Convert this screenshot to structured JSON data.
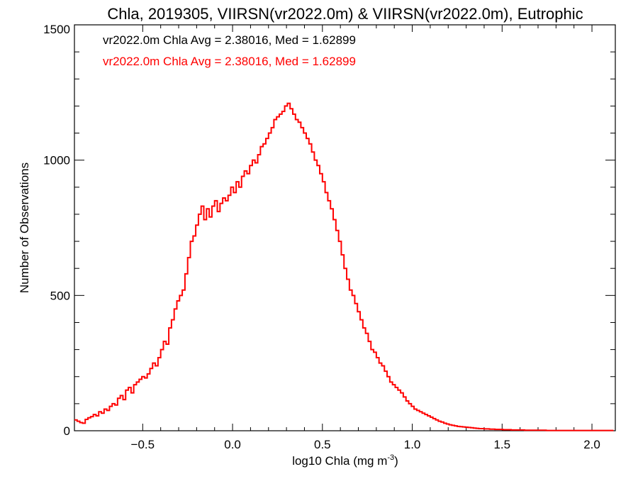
{
  "chart_data": {
    "type": "step-histogram",
    "title": "Chla, 2019305, VIIRSN(vr2022.0m) & VIIRSN(vr2022.0m), Eutrophic",
    "xlabel": "log10 Chla (mg m",
    "xlabel_sup": "-3",
    "xlabel_end": ")",
    "ylabel": "Number of Observations",
    "xlim": [
      -0.88,
      2.13
    ],
    "ylim": [
      0,
      1500
    ],
    "xticks": [
      -0.5,
      0.0,
      0.5,
      1.0,
      1.5,
      2.0
    ],
    "xtick_labels": [
      "−0.5",
      "0.0",
      "0.5",
      "1.0",
      "1.5",
      "2.0"
    ],
    "yticks": [
      0,
      500,
      1000,
      1500
    ],
    "ytick_labels": [
      "0",
      "500",
      "1000",
      "1500"
    ],
    "grid": false,
    "annotations": [
      {
        "text": "vr2022.0m Chla Avg = 2.38016, Med = 1.62899",
        "color": "#000000"
      },
      {
        "text": "vr2022.0m Chla Avg = 2.38016, Med = 1.62899",
        "color": "#ff0000"
      }
    ],
    "series": [
      {
        "color": "#ff0000",
        "bin_width": 0.015,
        "x": [
          -0.88,
          -0.865,
          -0.85,
          -0.835,
          -0.82,
          -0.805,
          -0.79,
          -0.775,
          -0.76,
          -0.745,
          -0.73,
          -0.715,
          -0.7,
          -0.685,
          -0.67,
          -0.655,
          -0.64,
          -0.625,
          -0.61,
          -0.595,
          -0.58,
          -0.565,
          -0.55,
          -0.535,
          -0.52,
          -0.505,
          -0.49,
          -0.475,
          -0.46,
          -0.445,
          -0.43,
          -0.415,
          -0.4,
          -0.385,
          -0.37,
          -0.355,
          -0.34,
          -0.325,
          -0.31,
          -0.295,
          -0.28,
          -0.265,
          -0.25,
          -0.235,
          -0.22,
          -0.205,
          -0.19,
          -0.175,
          -0.16,
          -0.145,
          -0.13,
          -0.115,
          -0.1,
          -0.085,
          -0.07,
          -0.055,
          -0.04,
          -0.025,
          -0.01,
          0.005,
          0.02,
          0.035,
          0.05,
          0.065,
          0.08,
          0.095,
          0.11,
          0.125,
          0.14,
          0.155,
          0.17,
          0.185,
          0.2,
          0.215,
          0.23,
          0.245,
          0.26,
          0.275,
          0.29,
          0.305,
          0.32,
          0.335,
          0.35,
          0.365,
          0.38,
          0.395,
          0.41,
          0.425,
          0.44,
          0.455,
          0.47,
          0.485,
          0.5,
          0.515,
          0.53,
          0.545,
          0.56,
          0.575,
          0.59,
          0.605,
          0.62,
          0.635,
          0.65,
          0.665,
          0.68,
          0.695,
          0.71,
          0.725,
          0.74,
          0.755,
          0.77,
          0.785,
          0.8,
          0.815,
          0.83,
          0.845,
          0.86,
          0.875,
          0.89,
          0.905,
          0.92,
          0.935,
          0.95,
          0.965,
          0.98,
          0.995,
          1.01,
          1.025,
          1.04,
          1.055,
          1.07,
          1.085,
          1.1,
          1.115,
          1.13,
          1.145,
          1.16,
          1.175,
          1.19,
          1.205,
          1.22,
          1.235,
          1.25,
          1.265,
          1.28,
          1.295,
          1.31,
          1.325,
          1.34,
          1.355,
          1.37,
          1.385,
          1.4,
          1.415,
          1.43,
          1.445,
          1.46,
          1.475,
          1.49,
          1.505,
          1.52,
          1.535,
          1.55,
          1.565,
          1.58,
          1.595,
          1.61,
          1.625,
          1.64,
          1.655,
          1.67,
          1.685,
          1.7,
          1.715,
          1.73,
          1.745,
          1.76,
          1.775,
          1.79,
          1.805,
          1.82,
          1.835,
          1.85,
          1.865,
          1.88,
          1.895,
          1.91,
          1.925,
          1.94,
          1.955,
          1.97,
          1.985,
          2.0,
          2.015,
          2.03,
          2.045,
          2.06,
          2.075,
          2.09,
          2.105,
          2.12
        ],
        "values": [
          40,
          35,
          30,
          28,
          42,
          48,
          52,
          60,
          55,
          70,
          65,
          80,
          75,
          90,
          100,
          95,
          120,
          130,
          115,
          150,
          160,
          140,
          170,
          180,
          190,
          200,
          195,
          210,
          230,
          250,
          240,
          270,
          300,
          330,
          320,
          380,
          410,
          450,
          480,
          500,
          520,
          580,
          640,
          700,
          720,
          760,
          800,
          830,
          780,
          820,
          790,
          830,
          850,
          810,
          840,
          860,
          850,
          870,
          900,
          880,
          920,
          900,
          940,
          960,
          950,
          980,
          1000,
          990,
          1020,
          1050,
          1060,
          1080,
          1100,
          1120,
          1150,
          1160,
          1170,
          1180,
          1200,
          1210,
          1190,
          1170,
          1150,
          1140,
          1120,
          1100,
          1080,
          1060,
          1030,
          1000,
          980,
          950,
          920,
          880,
          850,
          820,
          780,
          740,
          700,
          650,
          600,
          560,
          520,
          500,
          470,
          440,
          410,
          380,
          360,
          330,
          300,
          290,
          270,
          250,
          240,
          220,
          200,
          180,
          170,
          160,
          150,
          140,
          125,
          110,
          100,
          90,
          80,
          75,
          70,
          65,
          60,
          55,
          50,
          45,
          40,
          35,
          32,
          28,
          25,
          22,
          20,
          18,
          16,
          15,
          14,
          13,
          12,
          11,
          10,
          9,
          8,
          8,
          7,
          7,
          6,
          6,
          5,
          5,
          5,
          4,
          4,
          4,
          3,
          3,
          3,
          3,
          3,
          2,
          2,
          2,
          2,
          2,
          2,
          2,
          2,
          1,
          1,
          1,
          1,
          1,
          1,
          1,
          1,
          1,
          1,
          1,
          1,
          1,
          1,
          1,
          1,
          1,
          1,
          1,
          1,
          1,
          1,
          1,
          1,
          1
        ]
      }
    ]
  }
}
